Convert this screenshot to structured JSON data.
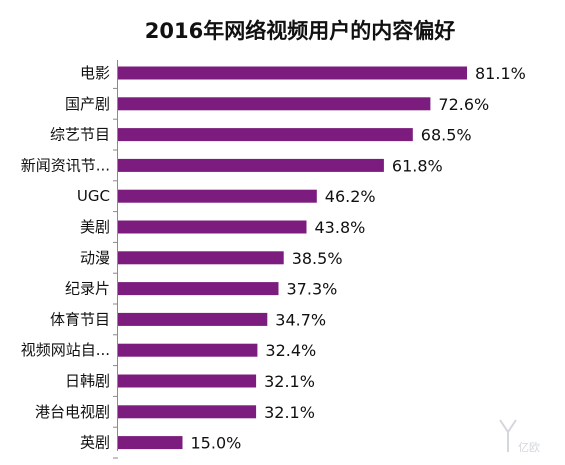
{
  "chart_data": {
    "type": "bar",
    "orientation": "horizontal",
    "title": "2016年网络视频用户的内容偏好",
    "xlabel": "",
    "ylabel": "",
    "xlim": [
      0,
      100
    ],
    "grid": false,
    "legend": "none",
    "value_format": "percent_one_decimal",
    "bar_color": "#7b1c7e",
    "axis_color": "#8a8a8a",
    "categories": [
      "电影",
      "国产剧",
      "综艺节目",
      "新闻资讯节...",
      "UGC",
      "美剧",
      "动漫",
      "纪录片",
      "体育节目",
      "视频网站自...",
      "日韩剧",
      "港台电视剧",
      "英剧"
    ],
    "values": [
      81.1,
      72.6,
      68.5,
      61.8,
      46.2,
      43.8,
      38.5,
      37.3,
      34.7,
      32.4,
      32.1,
      32.1,
      15.0
    ],
    "value_labels": [
      "81.1%",
      "72.6%",
      "68.5%",
      "61.8%",
      "46.2%",
      "43.8%",
      "38.5%",
      "37.3%",
      "34.7%",
      "32.4%",
      "32.1%",
      "32.1%",
      "15.0%"
    ]
  },
  "watermark": {
    "text": "亿欧",
    "color": "#d3d7de"
  }
}
